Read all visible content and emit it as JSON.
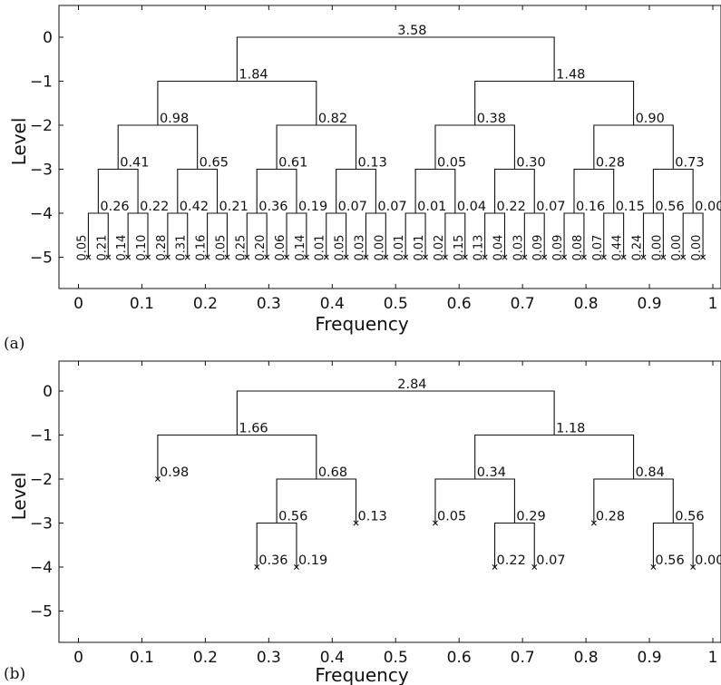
{
  "chart_data": [
    {
      "type": "dendrogram",
      "panel_label": "(a)",
      "xlabel": "Frequency",
      "ylabel": "Level",
      "xlim": [
        0,
        1
      ],
      "ylim": [
        -5,
        0
      ],
      "x_ticks": [
        0,
        0.1,
        0.2,
        0.3,
        0.4,
        0.5,
        0.6,
        0.7,
        0.8,
        0.9,
        1
      ],
      "x_tick_labels": [
        "0",
        "0.1",
        "0.2",
        "0.3",
        "0.4",
        "0.5",
        "0.6",
        "0.7",
        "0.8",
        "0.9",
        "1"
      ],
      "y_ticks": [
        0,
        -1,
        -2,
        -3,
        -4,
        -5
      ],
      "y_tick_labels": [
        "0",
        "−1",
        "−2",
        "−3",
        "−4",
        "−5"
      ],
      "nodes": [
        {
          "level": 0,
          "x": 0.5,
          "value": "3.58",
          "split": true
        },
        {
          "level": -1,
          "x": 0.25,
          "value": "1.84",
          "split": true
        },
        {
          "level": -1,
          "x": 0.75,
          "value": "1.48",
          "split": true
        },
        {
          "level": -2,
          "x": 0.125,
          "value": "0.98",
          "split": true
        },
        {
          "level": -2,
          "x": 0.375,
          "value": "0.82",
          "split": true
        },
        {
          "level": -2,
          "x": 0.625,
          "value": "0.38",
          "split": true
        },
        {
          "level": -2,
          "x": 0.875,
          "value": "0.90",
          "split": true
        },
        {
          "level": -3,
          "x": 0.0625,
          "value": "0.41",
          "split": true
        },
        {
          "level": -3,
          "x": 0.1875,
          "value": "0.65",
          "split": true
        },
        {
          "level": -3,
          "x": 0.3125,
          "value": "0.61",
          "split": true
        },
        {
          "level": -3,
          "x": 0.4375,
          "value": "0.13",
          "split": true
        },
        {
          "level": -3,
          "x": 0.5625,
          "value": "0.05",
          "split": true
        },
        {
          "level": -3,
          "x": 0.6875,
          "value": "0.30",
          "split": true
        },
        {
          "level": -3,
          "x": 0.8125,
          "value": "0.28",
          "split": true
        },
        {
          "level": -3,
          "x": 0.9375,
          "value": "0.73",
          "split": true
        },
        {
          "level": -4,
          "x": 0.03125,
          "value": "0.26",
          "split": true
        },
        {
          "level": -4,
          "x": 0.09375,
          "value": "0.22",
          "split": true
        },
        {
          "level": -4,
          "x": 0.15625,
          "value": "0.42",
          "split": true
        },
        {
          "level": -4,
          "x": 0.21875,
          "value": "0.21",
          "split": true
        },
        {
          "level": -4,
          "x": 0.28125,
          "value": "0.36",
          "split": true
        },
        {
          "level": -4,
          "x": 0.34375,
          "value": "0.19",
          "split": true
        },
        {
          "level": -4,
          "x": 0.40625,
          "value": "0.07",
          "split": true
        },
        {
          "level": -4,
          "x": 0.46875,
          "value": "0.07",
          "split": true
        },
        {
          "level": -4,
          "x": 0.53125,
          "value": "0.01",
          "split": true
        },
        {
          "level": -4,
          "x": 0.59375,
          "value": "0.04",
          "split": true
        },
        {
          "level": -4,
          "x": 0.65625,
          "value": "0.22",
          "split": true
        },
        {
          "level": -4,
          "x": 0.71875,
          "value": "0.07",
          "split": true
        },
        {
          "level": -4,
          "x": 0.78125,
          "value": "0.16",
          "split": true
        },
        {
          "level": -4,
          "x": 0.84375,
          "value": "0.15",
          "split": true
        },
        {
          "level": -4,
          "x": 0.90625,
          "value": "0.56",
          "split": true
        },
        {
          "level": -4,
          "x": 0.96875,
          "value": "0.00",
          "split": true
        }
      ],
      "leaves": {
        "level": -5,
        "values": [
          "0.05",
          "0.21",
          "0.14",
          "0.10",
          "0.28",
          "0.31",
          "0.16",
          "0.05",
          "0.25",
          "0.20",
          "0.06",
          "0.14",
          "0.01",
          "0.05",
          "0.03",
          "0.00",
          "0.01",
          "0.01",
          "0.02",
          "0.15",
          "0.13",
          "0.04",
          "0.03",
          "0.09",
          "0.09",
          "0.08",
          "0.07",
          "0.44",
          "0.24",
          "0.00",
          "0.00",
          "0.00"
        ]
      }
    },
    {
      "type": "dendrogram",
      "panel_label": "(b)",
      "xlabel": "Frequency",
      "ylabel": "Level",
      "xlim": [
        0,
        1
      ],
      "ylim": [
        -5,
        0
      ],
      "x_ticks": [
        0,
        0.1,
        0.2,
        0.3,
        0.4,
        0.5,
        0.6,
        0.7,
        0.8,
        0.9,
        1
      ],
      "x_tick_labels": [
        "0",
        "0.1",
        "0.2",
        "0.3",
        "0.4",
        "0.5",
        "0.6",
        "0.7",
        "0.8",
        "0.9",
        "1"
      ],
      "y_ticks": [
        0,
        -1,
        -2,
        -3,
        -4,
        -5
      ],
      "y_tick_labels": [
        "0",
        "−1",
        "−2",
        "−3",
        "−4",
        "−5"
      ],
      "nodes": [
        {
          "level": 0,
          "x": 0.5,
          "value": "2.84",
          "split": true
        },
        {
          "level": -1,
          "x": 0.25,
          "value": "1.66",
          "split": true
        },
        {
          "level": -1,
          "x": 0.75,
          "value": "1.18",
          "split": true
        },
        {
          "level": -2,
          "x": 0.125,
          "value": "0.98",
          "split": false
        },
        {
          "level": -2,
          "x": 0.375,
          "value": "0.68",
          "split": true
        },
        {
          "level": -2,
          "x": 0.625,
          "value": "0.34",
          "split": true
        },
        {
          "level": -2,
          "x": 0.875,
          "value": "0.84",
          "split": true
        },
        {
          "level": -3,
          "x": 0.3125,
          "value": "0.56",
          "split": true
        },
        {
          "level": -3,
          "x": 0.4375,
          "value": "0.13",
          "split": false
        },
        {
          "level": -3,
          "x": 0.5625,
          "value": "0.05",
          "split": false
        },
        {
          "level": -3,
          "x": 0.6875,
          "value": "0.29",
          "split": true
        },
        {
          "level": -3,
          "x": 0.8125,
          "value": "0.28",
          "split": false
        },
        {
          "level": -3,
          "x": 0.9375,
          "value": "0.56",
          "split": true
        },
        {
          "level": -4,
          "x": 0.28125,
          "value": "0.36",
          "split": false
        },
        {
          "level": -4,
          "x": 0.34375,
          "value": "0.19",
          "split": false
        },
        {
          "level": -4,
          "x": 0.65625,
          "value": "0.22",
          "split": false
        },
        {
          "level": -4,
          "x": 0.71875,
          "value": "0.07",
          "split": false
        },
        {
          "level": -4,
          "x": 0.90625,
          "value": "0.56",
          "split": false
        },
        {
          "level": -4,
          "x": 0.96875,
          "value": "0.00",
          "split": false
        }
      ]
    }
  ]
}
